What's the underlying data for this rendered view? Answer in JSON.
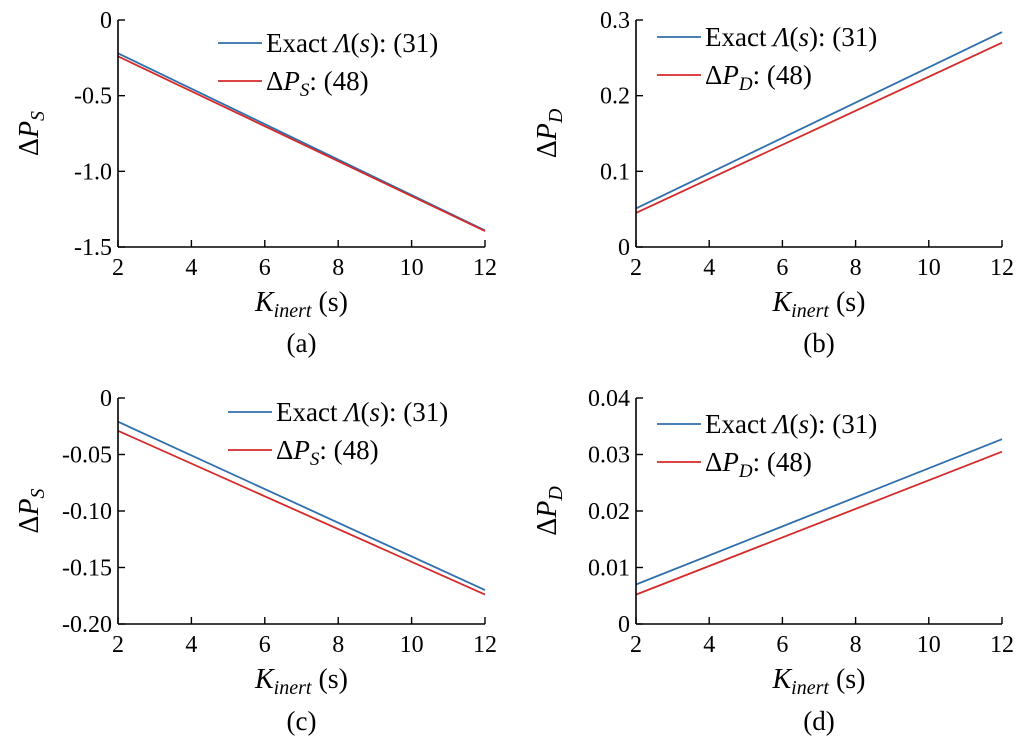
{
  "chart_data": [
    {
      "id": "a",
      "type": "line",
      "caption": "(a)",
      "xlabel": {
        "base": "K",
        "sub": "inert",
        "unit": " (s)"
      },
      "ylabel": {
        "prefix": "Δ",
        "base": "P",
        "sub": "S"
      },
      "xlim": [
        2,
        12
      ],
      "ylim": [
        -1.5,
        0
      ],
      "xticks": [
        2,
        4,
        6,
        8,
        10,
        12
      ],
      "xtick_labels": [
        "2",
        "4",
        "6",
        "8",
        "10",
        "12"
      ],
      "yticks": [
        0,
        -0.5,
        -1.0,
        -1.5
      ],
      "ytick_labels": [
        "0",
        "-0.5",
        "-1.0",
        "-1.5"
      ],
      "legend_position": "top-right",
      "series": [
        {
          "name": "Exact Λ(s): (31)",
          "legend": {
            "pre": "Exact ",
            "ital": "Λ",
            "mid": "(",
            "ital2": "s",
            "post": "): (31)"
          },
          "color": "#2f6fad",
          "x": [
            2,
            12
          ],
          "y": [
            -0.22,
            -1.39
          ]
        },
        {
          "name": "ΔPS: (48)",
          "legend": {
            "pre": "Δ",
            "ital": "P",
            "sub": "S",
            "post": ": (48)"
          },
          "color": "#d42a2a",
          "x": [
            2,
            12
          ],
          "y": [
            -0.24,
            -1.395
          ]
        }
      ]
    },
    {
      "id": "b",
      "type": "line",
      "caption": "(b)",
      "xlabel": {
        "base": "K",
        "sub": "inert",
        "unit": " (s)"
      },
      "ylabel": {
        "prefix": "Δ",
        "base": "P",
        "sub": "D"
      },
      "xlim": [
        2,
        12
      ],
      "ylim": [
        0,
        0.3
      ],
      "xticks": [
        2,
        4,
        6,
        8,
        10,
        12
      ],
      "xtick_labels": [
        "2",
        "4",
        "6",
        "8",
        "10",
        "12"
      ],
      "yticks": [
        0,
        0.1,
        0.2,
        0.3
      ],
      "ytick_labels": [
        "0",
        "0.1",
        "0.2",
        "0.3"
      ],
      "legend_position": "top-left",
      "series": [
        {
          "name": "Exact Λ(s): (31)",
          "legend": {
            "pre": "Exact ",
            "ital": "Λ",
            "mid": "(",
            "ital2": "s",
            "post": "): (31)"
          },
          "color": "#2f6fad",
          "x": [
            2,
            12
          ],
          "y": [
            0.051,
            0.284
          ]
        },
        {
          "name": "ΔPD: (48)",
          "legend": {
            "pre": "Δ",
            "ital": "P",
            "sub": "D",
            "post": ": (48)"
          },
          "color": "#d42a2a",
          "x": [
            2,
            12
          ],
          "y": [
            0.045,
            0.27
          ]
        }
      ]
    },
    {
      "id": "c",
      "type": "line",
      "caption": "(c)",
      "xlabel": {
        "base": "K",
        "sub": "inert",
        "unit": " (s)"
      },
      "ylabel": {
        "prefix": "Δ",
        "base": "P",
        "sub": "S"
      },
      "xlim": [
        2,
        12
      ],
      "ylim": [
        -0.2,
        0
      ],
      "xticks": [
        2,
        4,
        6,
        8,
        10,
        12
      ],
      "xtick_labels": [
        "2",
        "4",
        "6",
        "8",
        "10",
        "12"
      ],
      "yticks": [
        0,
        -0.05,
        -0.1,
        -0.15,
        -0.2
      ],
      "ytick_labels": [
        "0",
        "-0.05",
        "-0.10",
        "-0.15",
        "-0.20"
      ],
      "legend_position": "top-right",
      "series": [
        {
          "name": "Exact Λ(s): (31)",
          "legend": {
            "pre": "Exact ",
            "ital": "Λ",
            "mid": "(",
            "ital2": "s",
            "post": "): (31)"
          },
          "color": "#2f6fad",
          "x": [
            2,
            12
          ],
          "y": [
            -0.021,
            -0.17
          ]
        },
        {
          "name": "ΔPS: (48)",
          "legend": {
            "pre": "Δ",
            "ital": "P",
            "sub": "S",
            "post": ": (48)"
          },
          "color": "#d42a2a",
          "x": [
            2,
            12
          ],
          "y": [
            -0.029,
            -0.174
          ]
        }
      ]
    },
    {
      "id": "d",
      "type": "line",
      "caption": "(d)",
      "xlabel": {
        "base": "K",
        "sub": "inert",
        "unit": " (s)"
      },
      "ylabel": {
        "prefix": "Δ",
        "base": "P",
        "sub": "D"
      },
      "xlim": [
        2,
        12
      ],
      "ylim": [
        0,
        0.04
      ],
      "xticks": [
        2,
        4,
        6,
        8,
        10,
        12
      ],
      "xtick_labels": [
        "2",
        "4",
        "6",
        "8",
        "10",
        "12"
      ],
      "yticks": [
        0,
        0.01,
        0.02,
        0.03,
        0.04
      ],
      "ytick_labels": [
        "0",
        "0.01",
        "0.02",
        "0.03",
        "0.04"
      ],
      "legend_position": "top-left",
      "series": [
        {
          "name": "Exact Λ(s): (31)",
          "legend": {
            "pre": "Exact ",
            "ital": "Λ",
            "mid": "(",
            "ital2": "s",
            "post": "): (31)"
          },
          "color": "#2f6fad",
          "x": [
            2,
            12
          ],
          "y": [
            0.007,
            0.0327
          ]
        },
        {
          "name": "ΔPD: (48)",
          "legend": {
            "pre": "Δ",
            "ital": "P",
            "sub": "D",
            "post": ": (48)"
          },
          "color": "#d42a2a",
          "x": [
            2,
            12
          ],
          "y": [
            0.0052,
            0.0305
          ]
        }
      ]
    }
  ]
}
